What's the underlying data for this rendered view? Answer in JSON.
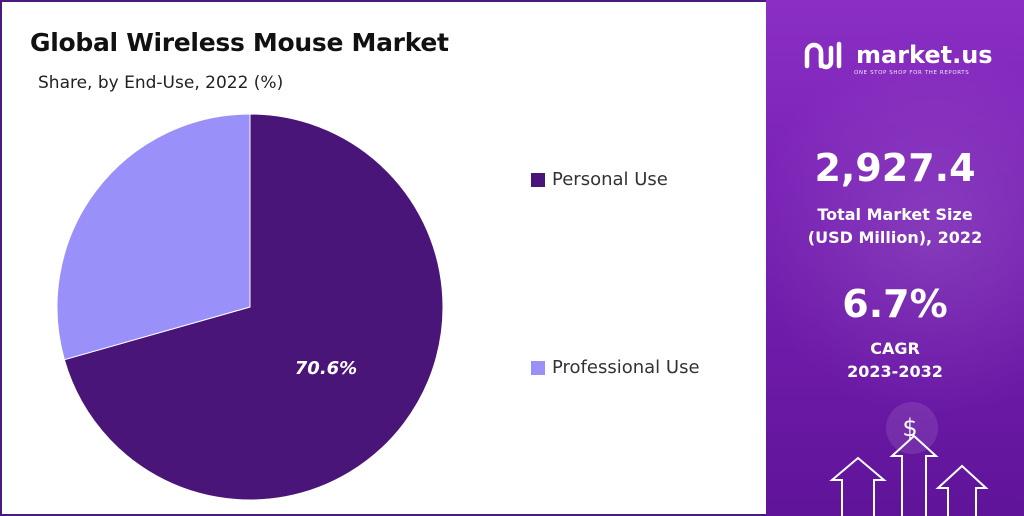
{
  "title": "Global Wireless Mouse Market",
  "subtitle": "Share, by End-Use, 2022 (%)",
  "chart_data": {
    "type": "pie",
    "title": "Global Wireless Mouse Market",
    "subtitle": "Share, by End-Use, 2022 (%)",
    "categories": [
      "Personal Use",
      "Professional Use"
    ],
    "values": [
      70.6,
      29.4
    ],
    "data_labels": [
      "70.6%",
      ""
    ],
    "colors": [
      "#4a1579",
      "#9a90fa"
    ],
    "legend_position": "right"
  },
  "legend": [
    {
      "label": "Personal Use",
      "color": "#4a1579"
    },
    {
      "label": "Professional Use",
      "color": "#9a90fa"
    }
  ],
  "sidebar": {
    "brand": "market.us",
    "tagline": "ONE STOP SHOP FOR THE REPORTS",
    "market_size_value": "2,927.4",
    "market_size_label_1": "Total Market Size",
    "market_size_label_2": "(USD Million), 2022",
    "cagr_value": "6.7%",
    "cagr_label_1": "CAGR",
    "cagr_label_2": "2023-2032",
    "currency_symbol": "$"
  }
}
